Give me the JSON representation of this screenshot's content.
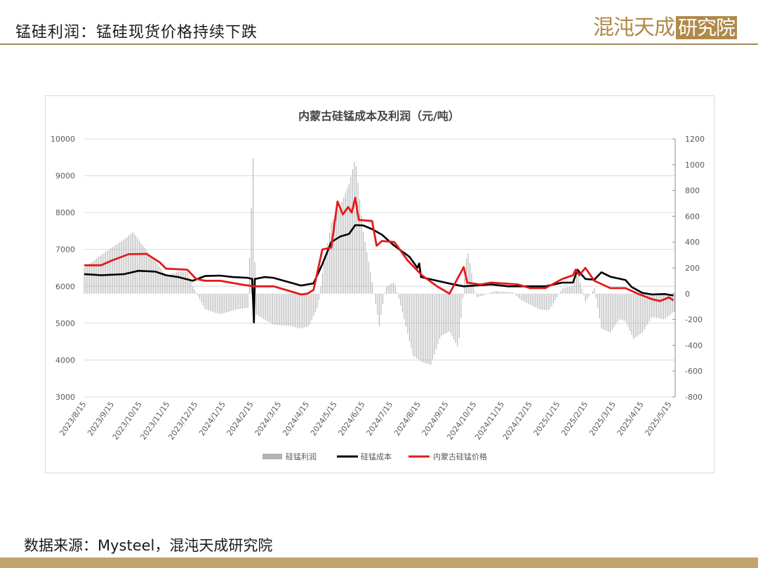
{
  "header": {
    "slide_title": "锰硅利润：锰硅现货价格持续下跌",
    "logo_text": "混沌天成",
    "logo_boxed_text": "研究院"
  },
  "footer": {
    "source": "数据来源：Mysteel，混沌天成研究院"
  },
  "colors": {
    "accent": "#a5885a",
    "cost": "#000000",
    "price": "#e31a1c",
    "profit": "#b3b3b3"
  },
  "chart_data": {
    "type": "bar+line",
    "title": "内蒙古硅锰成本及利润（元/吨）",
    "left_axis": {
      "ylim": [
        3000,
        10000
      ],
      "ticks": [
        "10000",
        "9000",
        "8000",
        "7000",
        "6000",
        "5000",
        "4000",
        "3000"
      ]
    },
    "right_axis": {
      "ylim": [
        -800,
        1200
      ],
      "ticks": [
        "1200",
        "1000",
        "800",
        "600",
        "400",
        "200",
        "0",
        "-200",
        "-400",
        "-600",
        "-800"
      ]
    },
    "x_ticks": [
      "2023/8/15",
      "2023/9/15",
      "2023/10/15",
      "2023/11/15",
      "2023/12/15",
      "2024/1/15",
      "2024/2/15",
      "2024/3/15",
      "2024/4/15",
      "2024/5/15",
      "2024/6/15",
      "2024/7/15",
      "2024/8/15",
      "2024/9/15",
      "2024/10/15",
      "2024/11/15",
      "2024/12/15",
      "2025/1/15",
      "2025/2/15",
      "2025/3/15",
      "2025/4/15",
      "2025/5/15"
    ],
    "legend": [
      "硅锰利润",
      "硅锰成本",
      "内蒙古硅锰价格"
    ],
    "legend_position": "bottom",
    "series": [
      {
        "name": "硅锰成本",
        "type": "line",
        "axis": "left",
        "points": [
          [
            "2023-08-01",
            6330
          ],
          [
            "2023-08-20",
            6300
          ],
          [
            "2023-09-15",
            6330
          ],
          [
            "2023-10-01",
            6420
          ],
          [
            "2023-10-20",
            6400
          ],
          [
            "2023-11-01",
            6300
          ],
          [
            "2023-11-15",
            6250
          ],
          [
            "2023-12-01",
            6150
          ],
          [
            "2023-12-15",
            6280
          ],
          [
            "2024-01-01",
            6290
          ],
          [
            "2024-01-15",
            6250
          ],
          [
            "2024-02-01",
            6230
          ],
          [
            "2024-02-06",
            6200
          ],
          [
            "2024-02-08",
            5020
          ],
          [
            "2024-02-09",
            6200
          ],
          [
            "2024-02-20",
            6250
          ],
          [
            "2024-03-01",
            6230
          ],
          [
            "2024-03-20",
            6100
          ],
          [
            "2024-04-01",
            6020
          ],
          [
            "2024-04-15",
            6080
          ],
          [
            "2024-04-25",
            6600
          ],
          [
            "2024-05-05",
            7200
          ],
          [
            "2024-05-15",
            7350
          ],
          [
            "2024-05-25",
            7420
          ],
          [
            "2024-06-01",
            7660
          ],
          [
            "2024-06-10",
            7650
          ],
          [
            "2024-06-20",
            7550
          ],
          [
            "2024-07-01",
            7400
          ],
          [
            "2024-07-15",
            7100
          ],
          [
            "2024-08-01",
            6800
          ],
          [
            "2024-08-10",
            6500
          ],
          [
            "2024-08-12",
            6620
          ],
          [
            "2024-08-14",
            6250
          ],
          [
            "2024-09-01",
            6150
          ],
          [
            "2024-09-20",
            6050
          ],
          [
            "2024-10-01",
            6000
          ],
          [
            "2024-10-20",
            6030
          ],
          [
            "2024-11-01",
            6050
          ],
          [
            "2024-11-20",
            6000
          ],
          [
            "2024-12-15",
            6000
          ],
          [
            "2025-01-01",
            6000
          ],
          [
            "2025-01-20",
            6100
          ],
          [
            "2025-02-01",
            6100
          ],
          [
            "2025-02-06",
            6450
          ],
          [
            "2025-02-15",
            6200
          ],
          [
            "2025-02-25",
            6180
          ],
          [
            "2025-03-05",
            6380
          ],
          [
            "2025-03-15",
            6260
          ],
          [
            "2025-04-01",
            6170
          ],
          [
            "2025-04-08",
            5980
          ],
          [
            "2025-04-20",
            5820
          ],
          [
            "2025-05-01",
            5780
          ],
          [
            "2025-05-15",
            5790
          ],
          [
            "2025-05-25",
            5750
          ]
        ]
      },
      {
        "name": "内蒙古硅锰价格",
        "type": "line",
        "axis": "left",
        "points": [
          [
            "2023-08-01",
            6570
          ],
          [
            "2023-08-20",
            6570
          ],
          [
            "2023-09-01",
            6700
          ],
          [
            "2023-09-20",
            6870
          ],
          [
            "2023-10-10",
            6880
          ],
          [
            "2023-10-25",
            6650
          ],
          [
            "2023-11-01",
            6480
          ],
          [
            "2023-11-25",
            6450
          ],
          [
            "2023-12-05",
            6200
          ],
          [
            "2023-12-15",
            6150
          ],
          [
            "2024-01-01",
            6150
          ],
          [
            "2024-01-25",
            6050
          ],
          [
            "2024-02-08",
            6000
          ],
          [
            "2024-03-01",
            6000
          ],
          [
            "2024-03-15",
            5900
          ],
          [
            "2024-04-01",
            5780
          ],
          [
            "2024-04-08",
            5800
          ],
          [
            "2024-04-15",
            5900
          ],
          [
            "2024-04-25",
            7000
          ],
          [
            "2024-05-05",
            7050
          ],
          [
            "2024-05-12",
            8300
          ],
          [
            "2024-05-18",
            7950
          ],
          [
            "2024-05-24",
            8150
          ],
          [
            "2024-05-28",
            8000
          ],
          [
            "2024-06-01",
            8400
          ],
          [
            "2024-06-05",
            7800
          ],
          [
            "2024-06-20",
            7770
          ],
          [
            "2024-06-25",
            7100
          ],
          [
            "2024-07-01",
            7230
          ],
          [
            "2024-07-15",
            7200
          ],
          [
            "2024-07-30",
            6700
          ],
          [
            "2024-08-15",
            6300
          ],
          [
            "2024-09-01",
            6000
          ],
          [
            "2024-09-15",
            5800
          ],
          [
            "2024-10-01",
            6520
          ],
          [
            "2024-10-05",
            6100
          ],
          [
            "2024-10-20",
            6050
          ],
          [
            "2024-11-01",
            6100
          ],
          [
            "2024-12-01",
            6050
          ],
          [
            "2024-12-15",
            5950
          ],
          [
            "2025-01-01",
            5950
          ],
          [
            "2025-01-20",
            6200
          ],
          [
            "2025-02-01",
            6300
          ],
          [
            "2025-02-04",
            6450
          ],
          [
            "2025-02-08",
            6300
          ],
          [
            "2025-02-15",
            6500
          ],
          [
            "2025-02-25",
            6150
          ],
          [
            "2025-03-15",
            5950
          ],
          [
            "2025-04-01",
            5950
          ],
          [
            "2025-04-15",
            5800
          ],
          [
            "2025-05-01",
            5650
          ],
          [
            "2025-05-10",
            5600
          ],
          [
            "2025-05-20",
            5700
          ],
          [
            "2025-05-25",
            5620
          ]
        ]
      },
      {
        "name": "硅锰利润",
        "type": "bar",
        "axis": "right",
        "points": [
          [
            "2023-08-01",
            200
          ],
          [
            "2023-08-20",
            300
          ],
          [
            "2023-09-15",
            420
          ],
          [
            "2023-09-25",
            480
          ],
          [
            "2023-10-05",
            380
          ],
          [
            "2023-10-20",
            250
          ],
          [
            "2023-11-01",
            140
          ],
          [
            "2023-11-15",
            170
          ],
          [
            "2023-11-25",
            170
          ],
          [
            "2023-12-01",
            60
          ],
          [
            "2023-12-15",
            -120
          ],
          [
            "2024-01-01",
            -160
          ],
          [
            "2024-01-20",
            -120
          ],
          [
            "2024-02-01",
            -110
          ],
          [
            "2024-02-07",
            1050
          ],
          [
            "2024-02-10",
            -160
          ],
          [
            "2024-03-01",
            -240
          ],
          [
            "2024-03-20",
            -250
          ],
          [
            "2024-04-01",
            -270
          ],
          [
            "2024-04-10",
            -250
          ],
          [
            "2024-04-20",
            -100
          ],
          [
            "2024-04-25",
            160
          ],
          [
            "2024-05-05",
            550
          ],
          [
            "2024-05-15",
            680
          ],
          [
            "2024-05-25",
            850
          ],
          [
            "2024-06-01",
            1050
          ],
          [
            "2024-06-10",
            480
          ],
          [
            "2024-06-20",
            90
          ],
          [
            "2024-06-28",
            -250
          ],
          [
            "2024-07-05",
            50
          ],
          [
            "2024-07-15",
            90
          ],
          [
            "2024-07-25",
            -170
          ],
          [
            "2024-08-05",
            -480
          ],
          [
            "2024-08-15",
            -530
          ],
          [
            "2024-08-25",
            -550
          ],
          [
            "2024-09-05",
            -330
          ],
          [
            "2024-09-15",
            -290
          ],
          [
            "2024-09-25",
            -420
          ],
          [
            "2024-10-05",
            350
          ],
          [
            "2024-10-15",
            -30
          ],
          [
            "2024-10-25",
            -10
          ],
          [
            "2024-11-05",
            20
          ],
          [
            "2024-11-25",
            10
          ],
          [
            "2024-12-05",
            -50
          ],
          [
            "2024-12-25",
            -120
          ],
          [
            "2025-01-05",
            -130
          ],
          [
            "2025-01-20",
            40
          ],
          [
            "2025-02-01",
            60
          ],
          [
            "2025-02-06",
            160
          ],
          [
            "2025-02-15",
            -60
          ],
          [
            "2025-02-25",
            40
          ],
          [
            "2025-03-05",
            -270
          ],
          [
            "2025-03-15",
            -300
          ],
          [
            "2025-03-25",
            -200
          ],
          [
            "2025-04-01",
            -210
          ],
          [
            "2025-04-10",
            -350
          ],
          [
            "2025-04-20",
            -300
          ],
          [
            "2025-05-01",
            -180
          ],
          [
            "2025-05-15",
            -200
          ],
          [
            "2025-05-25",
            -140
          ]
        ]
      }
    ]
  }
}
